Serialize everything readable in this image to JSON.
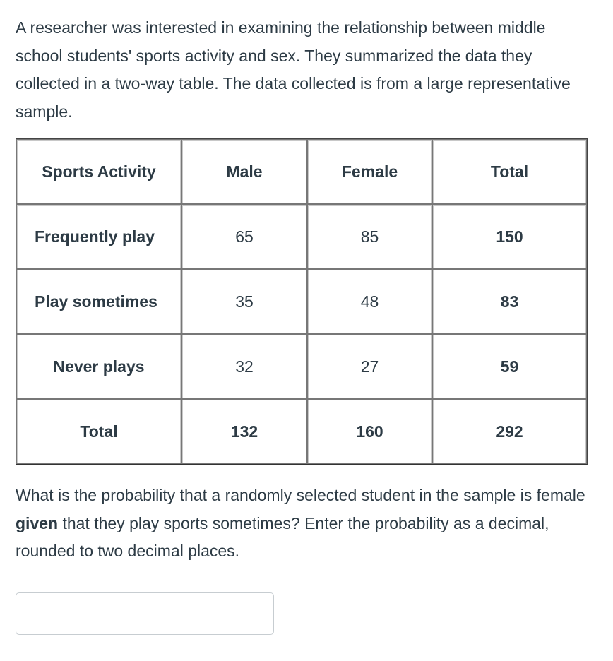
{
  "intro": {
    "text": "A researcher was interested in examining the relationship between middle school students' sports activity and sex.  They summarized the data they collected in a two-way table.  The data collected is from a large representative sample."
  },
  "table": {
    "headers": [
      "Sports Activity",
      "Male",
      "Female",
      "Total"
    ],
    "rows": [
      {
        "label": "Frequently play",
        "male": "65",
        "female": "85",
        "total": "150"
      },
      {
        "label": "Play sometimes",
        "male": "35",
        "female": "48",
        "total": "83"
      },
      {
        "label": "Never plays",
        "male": "32",
        "female": "27",
        "total": "59"
      },
      {
        "label": "Total",
        "male": "132",
        "female": "160",
        "total": "292"
      }
    ]
  },
  "question": {
    "before": "What is the probability that a randomly selected student in the sample is female ",
    "emphasis": "given",
    "after": " that they play sports sometimes?  Enter the probability as a decimal, rounded to two decimal places."
  },
  "answer": {
    "value": "",
    "placeholder": ""
  }
}
